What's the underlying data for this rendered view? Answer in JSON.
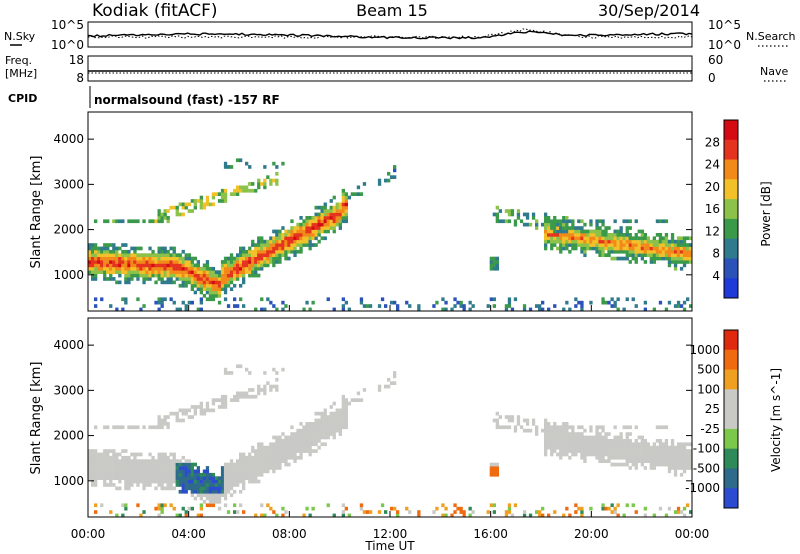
{
  "header": {
    "site": "Kodiak (fitACF)",
    "beam": "Beam 15",
    "date": "30/Sep/2014"
  },
  "strip_noise": {
    "left_label": "N.Sky",
    "right_label": "N.Search",
    "left_ticks": [
      "10^5",
      "10^0"
    ],
    "right_ticks": [
      "10^5",
      "10^0"
    ]
  },
  "strip_freq": {
    "left_label_top": "Freq.",
    "left_label_unit": "[MHz]",
    "right_label": "Nave",
    "left_ticks": [
      "18",
      "8"
    ],
    "right_ticks": [
      "60",
      "0"
    ]
  },
  "cpid": {
    "label": "CPID",
    "value": "normalsound (fast) -157 RF"
  },
  "colors": {
    "power_scale": [
      "#1f3ad8",
      "#2a52b8",
      "#2f7a8c",
      "#3b9a4a",
      "#8cc24a",
      "#f2c12a",
      "#f28a1a",
      "#e4331e",
      "#d40b12"
    ],
    "velocity_scale": [
      "#2b4bd0",
      "#2e6a8a",
      "#2f8a5a",
      "#7cc84a",
      "#c9c9c6",
      "#c9c9c6",
      "#f0a020",
      "#f06a10",
      "#e02a10"
    ]
  },
  "chart_data": [
    {
      "type": "heatmap",
      "title": "",
      "xlabel": "",
      "ylabel": "Slant Range [km]",
      "xlim": [
        0,
        24
      ],
      "ylim": [
        200,
        4600
      ],
      "x_ticks": [
        "00:00",
        "04:00",
        "08:00",
        "12:00",
        "16:00",
        "20:00",
        "00:00"
      ],
      "y_ticks": [
        "1000",
        "2000",
        "3000",
        "4000"
      ],
      "colorbar_label": "Power [dB]",
      "colorbar_ticks": [
        "28",
        "24",
        "20",
        "16",
        "12",
        "8",
        "4"
      ],
      "colorbar_range": [
        0,
        30
      ]
    },
    {
      "type": "heatmap",
      "title": "",
      "xlabel": "Time UT",
      "ylabel": "Slant Range [km]",
      "xlim": [
        0,
        24
      ],
      "ylim": [
        200,
        4600
      ],
      "x_ticks": [
        "00:00",
        "04:00",
        "08:00",
        "12:00",
        "16:00",
        "20:00",
        "00:00"
      ],
      "y_ticks": [
        "1000",
        "2000",
        "3000",
        "4000"
      ],
      "colorbar_label": "Velocity [m s^-1]",
      "colorbar_ticks": [
        "1000",
        "500",
        "100",
        "25",
        "-25",
        "-100",
        "-500",
        "-1000"
      ]
    }
  ]
}
